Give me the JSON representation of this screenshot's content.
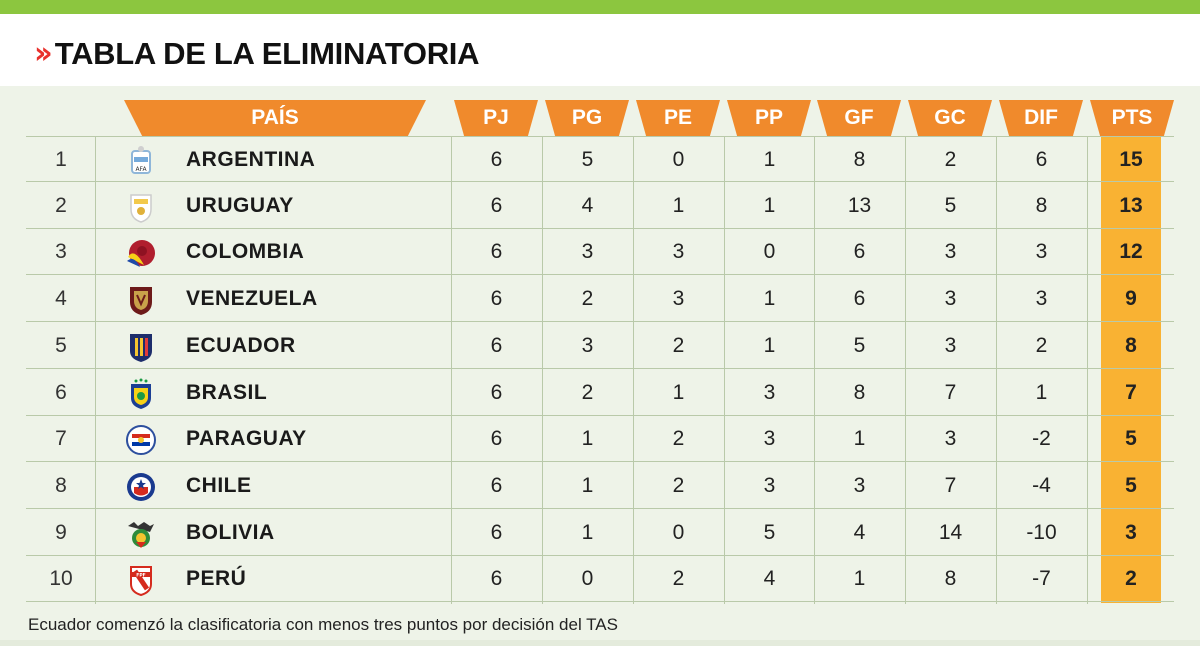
{
  "title": "TABLA DE LA ELIMINATORIA",
  "colors": {
    "accent_green": "#8cc63f",
    "header_orange": "#f08a2c",
    "pts_highlight": "#f9b233",
    "chevron_red": "#e8302c"
  },
  "columns": {
    "pais": "PAÍS",
    "pj": "PJ",
    "pg": "PG",
    "pe": "PE",
    "pp": "PP",
    "gf": "GF",
    "gc": "GC",
    "dif": "DIF",
    "pts": "PTS"
  },
  "rows": [
    {
      "rank": "1",
      "team": "ARGENTINA",
      "crest": "argentina-crest-icon",
      "pj": "6",
      "pg": "5",
      "pe": "0",
      "pp": "1",
      "gf": "8",
      "gc": "2",
      "dif": "6",
      "pts": "15"
    },
    {
      "rank": "2",
      "team": "URUGUAY",
      "crest": "uruguay-crest-icon",
      "pj": "6",
      "pg": "4",
      "pe": "1",
      "pp": "1",
      "gf": "13",
      "gc": "5",
      "dif": "8",
      "pts": "13"
    },
    {
      "rank": "3",
      "team": "COLOMBIA",
      "crest": "colombia-crest-icon",
      "pj": "6",
      "pg": "3",
      "pe": "3",
      "pp": "0",
      "gf": "6",
      "gc": "3",
      "dif": "3",
      "pts": "12"
    },
    {
      "rank": "4",
      "team": "VENEZUELA",
      "crest": "venezuela-crest-icon",
      "pj": "6",
      "pg": "2",
      "pe": "3",
      "pp": "1",
      "gf": "6",
      "gc": "3",
      "dif": "3",
      "pts": "9"
    },
    {
      "rank": "5",
      "team": "ECUADOR",
      "crest": "ecuador-crest-icon",
      "pj": "6",
      "pg": "3",
      "pe": "2",
      "pp": "1",
      "gf": "5",
      "gc": "3",
      "dif": "2",
      "pts": "8"
    },
    {
      "rank": "6",
      "team": "BRASIL",
      "crest": "brasil-crest-icon",
      "pj": "6",
      "pg": "2",
      "pe": "1",
      "pp": "3",
      "gf": "8",
      "gc": "7",
      "dif": "1",
      "pts": "7"
    },
    {
      "rank": "7",
      "team": "PARAGUAY",
      "crest": "paraguay-crest-icon",
      "pj": "6",
      "pg": "1",
      "pe": "2",
      "pp": "3",
      "gf": "1",
      "gc": "3",
      "dif": "-2",
      "pts": "5"
    },
    {
      "rank": "8",
      "team": "CHILE",
      "crest": "chile-crest-icon",
      "pj": "6",
      "pg": "1",
      "pe": "2",
      "pp": "3",
      "gf": "3",
      "gc": "7",
      "dif": "-4",
      "pts": "5"
    },
    {
      "rank": "9",
      "team": "BOLIVIA",
      "crest": "bolivia-crest-icon",
      "pj": "6",
      "pg": "1",
      "pe": "0",
      "pp": "5",
      "gf": "4",
      "gc": "14",
      "dif": "-10",
      "pts": "3"
    },
    {
      "rank": "10",
      "team": "PERÚ",
      "crest": "peru-crest-icon",
      "pj": "6",
      "pg": "0",
      "pe": "2",
      "pp": "4",
      "gf": "1",
      "gc": "8",
      "dif": "-7",
      "pts": "2"
    }
  ],
  "footnote": "Ecuador comenzó la clasificatoria con menos tres puntos por decisión del TAS"
}
